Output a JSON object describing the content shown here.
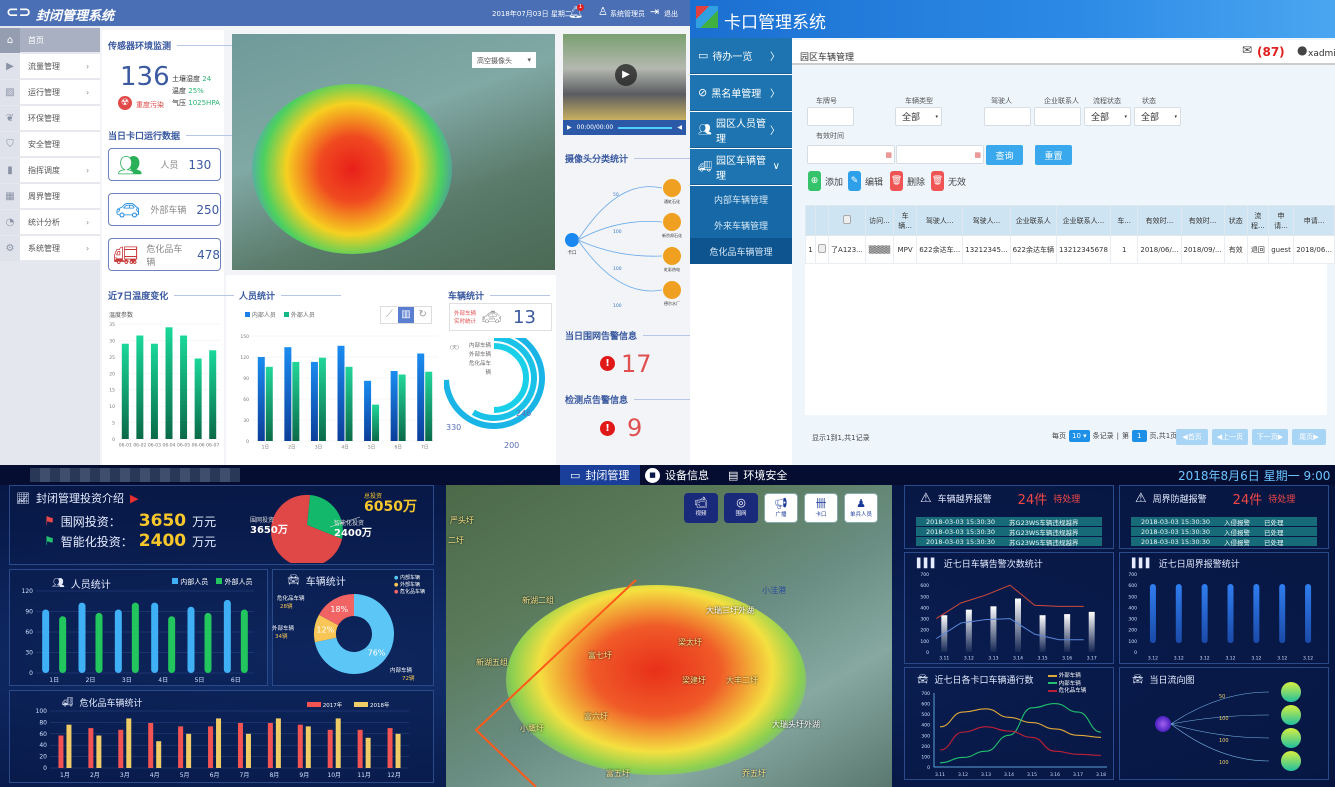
{
  "tl": {
    "app_title": "封闭管理系统",
    "date": "2018年07月03日 星期二",
    "bell_badge": "1",
    "user": "系统管理员",
    "logout": "退出",
    "sidebar": [
      {
        "label": "首页",
        "icon": "home-icon",
        "chevron": false
      },
      {
        "label": "流量管理",
        "icon": "video-icon",
        "chevron": true
      },
      {
        "label": "运行管理",
        "icon": "monitor-chart-icon",
        "chevron": true
      },
      {
        "label": "环保管理",
        "icon": "leaf-icon",
        "chevron": false
      },
      {
        "label": "安全管理",
        "icon": "shield-icon",
        "chevron": false
      },
      {
        "label": "指挥调度",
        "icon": "walkie-talkie-icon",
        "chevron": true
      },
      {
        "label": "周界管理",
        "icon": "fence-icon",
        "chevron": false
      },
      {
        "label": "统计分析",
        "icon": "pie-icon",
        "chevron": true
      },
      {
        "label": "系统管理",
        "icon": "gear-icon",
        "chevron": true
      }
    ],
    "sensor": {
      "title": "传感器环境监测",
      "value": "136",
      "status": "重度污染",
      "soil_label": "土壤湿度",
      "soil": "24",
      "temp_label": "温度",
      "temp": "25%",
      "pressure_label": "气压",
      "pressure": "1025HPA"
    },
    "gate": {
      "title": "当日卡口运行数据",
      "items": [
        {
          "label": "人员",
          "value": "130"
        },
        {
          "label": "外部车辆",
          "value": "250"
        },
        {
          "label": "危化品车辆",
          "value": "478"
        }
      ]
    },
    "map_select": "高空摄像头",
    "video_time": "00:00/00:00",
    "camera": {
      "title": "摄像头分类统计",
      "source": "卡口",
      "targets": [
        {
          "name": "通虹石化",
          "value": "50"
        },
        {
          "name": "新京邦石化",
          "value": "100"
        },
        {
          "name": "虹彩热电",
          "value": "100"
        },
        {
          "name": "德尔水厂",
          "value": "100"
        }
      ]
    },
    "fence_alarm": {
      "title": "当日围网告警信息",
      "value": "17"
    },
    "point_alarm": {
      "title": "检测点告警信息",
      "value": "9"
    },
    "temp_chart_title": "近7日温度变化",
    "people_chart_title": "人员统计",
    "vehicle": {
      "title": "车辆统计",
      "sub1": "外部车辆",
      "sub2": "实时统计",
      "count": "13",
      "unit": "(天)"
    }
  },
  "tr": {
    "app_title": "卡口管理系统",
    "sidebar": [
      {
        "label": "待办一览",
        "chev": "〉"
      },
      {
        "label": "黑名单管理",
        "chev": "〉"
      },
      {
        "label": "园区人员管理",
        "chev": "〉"
      },
      {
        "label": "园区车辆管理",
        "chev": "∨"
      }
    ],
    "submenu": [
      "内部车辆管理",
      "外来车辆管理",
      "危化品车辆管理"
    ],
    "page_title": "园区车辆管理",
    "mail_count": "(87)",
    "user": "xadmin",
    "filters": {
      "plate": "车牌号",
      "type": "车辆类型",
      "type_val": "全部",
      "driver": "驾驶人",
      "contact": "企业联系人",
      "flow": "流程状态",
      "flow_val": "全部",
      "state": "状态",
      "state_val": "全部",
      "valid": "有效时间"
    },
    "query": "查询",
    "reset": "重置",
    "actions": {
      "add": "添加",
      "edit": "编辑",
      "delete": "删除",
      "invalid": "无效"
    },
    "table": {
      "headers": [
        "",
        "车牌...",
        "访问...",
        "车辆...",
        "驾驶人...",
        "驾驶人...",
        "企业联系人",
        "企业联系人...",
        "车...",
        "有效时...",
        "有效时...",
        "状态",
        "流程...",
        "申请...",
        "申请..."
      ],
      "rows": [
        [
          "1",
          "了A123...",
          "▒▒▒▒",
          "MPV",
          "622余达车...",
          "13212345...",
          "622余达车辆",
          "13212345678",
          "1",
          "2018/06/...",
          "2018/09/...",
          "有效",
          "退回",
          "guest",
          "2018/06..."
        ]
      ]
    },
    "footer": {
      "summary": "显示1到1,共1记录",
      "per_page": "每页",
      "per_val": "10",
      "records": "条记录",
      "page_pre": "第",
      "page": "1",
      "page_post": "页,共1页",
      "first": "首页",
      "prev": "上一页",
      "next": "下一页",
      "last": "尾页"
    }
  },
  "bt": {
    "tabs": [
      "封闭管理",
      "设备信息",
      "环境安全"
    ],
    "datetime": "2018年8月6日 星期一 9:00",
    "invest": {
      "title": "封闭管理投资介绍",
      "fence_label": "围网投资：",
      "fence": "3650",
      "smart_label": "智能化投资：",
      "smart": "2400",
      "unit": "万元",
      "pie_total_label": "总投资",
      "pie_total": "6050万",
      "pie_fence_label": "围网投资",
      "pie_fence": "3650万",
      "pie_smart_label": "智能化投资",
      "pie_smart": "2400万"
    },
    "people_title": "人员统计",
    "vehicle_title": "车辆统计",
    "hazmat_title": "危化品车辆统计",
    "map_buttons": [
      "视频",
      "围网",
      "广播",
      "卡口",
      "单兵人员"
    ],
    "map_labels": [
      "严头圩",
      "二圩",
      "新湖二组",
      "新湖五组",
      "富七圩",
      "梁太圩",
      "梁建圩",
      "大丰二圩",
      "富六圩",
      "小洼港",
      "大瑞三圩外湖",
      "大瑞头圩外湖",
      "小鹰圩",
      "富五圩",
      "乔五圩"
    ],
    "alarm1": {
      "title": "车辆越界报警",
      "count": "24件",
      "status": "待处理",
      "rows": [
        [
          "2018-03-03 15:30:30",
          "苏G23WS车辆违规越界"
        ],
        [
          "2018-03-03 15:30:30",
          "苏G23WS车辆违规越界"
        ],
        [
          "2018-03-03 15:30:30",
          "苏G23WS车辆违规越界"
        ]
      ]
    },
    "alarm2": {
      "title": "周界防越报警",
      "count": "24件",
      "status": "待处理",
      "rows": [
        [
          "2018-03-03 15:30:30",
          "入侵报警",
          "已处理"
        ],
        [
          "2018-03-03 15:30:30",
          "入侵报警",
          "已处理"
        ],
        [
          "2018-03-03 15:30:30",
          "入侵报警",
          "已处理"
        ]
      ]
    },
    "c_alarm_title": "近七日车辆告警次数统计",
    "c_perim_title": "近七日周界报警统计",
    "c_gate_title": "近七日各卡口车辆通行数",
    "flow_title": "当日流向图",
    "flow_values": [
      "50",
      "100",
      "100",
      "100"
    ]
  },
  "chart_data": [
    {
      "id": "temp",
      "type": "bar",
      "title": "近7日温度变化",
      "ylabel": "温度参数",
      "categories": [
        "06-01",
        "06-02",
        "06-03",
        "06-04",
        "06-05",
        "06-06",
        "06-07"
      ],
      "series": [
        {
          "name": "温度",
          "values": [
            29,
            31.5,
            29,
            34,
            31.5,
            24.5,
            27
          ],
          "color": "#1fc98a"
        }
      ],
      "ylim": [
        0,
        35
      ],
      "ticks": [
        0,
        5,
        10,
        15,
        20,
        25,
        30,
        35
      ]
    },
    {
      "id": "people",
      "type": "bar",
      "title": "人员统计",
      "categories": [
        "1日",
        "2日",
        "3日",
        "4日",
        "5日",
        "6日",
        "7日"
      ],
      "series": [
        {
          "name": "内部人员",
          "values": [
            120,
            134,
            113,
            136,
            86,
            100,
            125
          ],
          "color": "#1a7ee8"
        },
        {
          "name": "外部人员",
          "values": [
            106,
            113,
            119,
            106,
            52,
            95,
            99
          ],
          "color": "#16b886"
        }
      ],
      "ylim": [
        0,
        150
      ],
      "ticks": [
        0,
        30,
        60,
        90,
        120,
        150
      ]
    },
    {
      "id": "ring",
      "type": "pie",
      "title": "车辆统计",
      "categories": [
        "内部车辆",
        "外部车辆",
        "危化品车辆"
      ],
      "values": [
        330,
        246,
        200
      ]
    },
    {
      "id": "bpeople",
      "type": "bar",
      "title": "人员统计",
      "categories": [
        "1日",
        "2日",
        "3日",
        "4日",
        "5日",
        "6日"
      ],
      "series": [
        {
          "name": "内部人员",
          "values": [
            93,
            103,
            93,
            103,
            97,
            107
          ],
          "color": "#3fb0f5"
        },
        {
          "name": "外部人员",
          "values": [
            83,
            88,
            103,
            83,
            88,
            93
          ],
          "color": "#22c55e"
        }
      ],
      "ylim": [
        0,
        120
      ],
      "ticks": [
        0,
        30,
        60,
        90,
        120
      ]
    },
    {
      "id": "donut",
      "type": "pie",
      "title": "车辆统计",
      "categories": [
        "内部车辆",
        "外部车辆",
        "危化品车辆"
      ],
      "values": [
        76,
        12,
        18
      ],
      "labels": [
        "76%",
        "12%",
        "18%"
      ],
      "counts": [
        "72辆",
        "34辆",
        "28辆"
      ],
      "colors": [
        "#5cc6f7",
        "#f7c656",
        "#f26464"
      ]
    },
    {
      "id": "hazmat",
      "type": "bar",
      "title": "危化品车辆统计",
      "categories": [
        "1月",
        "2月",
        "3月",
        "4月",
        "5月",
        "6月",
        "7月",
        "8月",
        "9月",
        "10月",
        "11月",
        "12月"
      ],
      "series": [
        {
          "name": "2017年",
          "values": [
            57,
            70,
            67,
            79,
            73,
            73,
            79,
            79,
            76,
            67,
            67,
            70
          ],
          "color": "#f25454"
        },
        {
          "name": "2018年",
          "values": [
            76,
            57,
            87,
            47,
            60,
            87,
            60,
            87,
            73,
            87,
            53,
            60
          ],
          "color": "#f0cc66"
        }
      ],
      "ylim": [
        0,
        100
      ],
      "ticks": [
        0,
        20,
        40,
        60,
        80,
        100
      ]
    },
    {
      "id": "valarm",
      "type": "bar",
      "title": "近七日车辆告警次数统计",
      "categories": [
        "3.11",
        "3.12",
        "3.13",
        "3.14",
        "3.15",
        "3.16",
        "3.17"
      ],
      "series": [
        {
          "name": "告警",
          "values": [
            330,
            380,
            410,
            480,
            330,
            340,
            360
          ],
          "color": "#ffffff"
        }
      ],
      "lines": [
        {
          "values": [
            300,
            440,
            510,
            600,
            420,
            410,
            410
          ],
          "color": "#d04a3a"
        },
        {
          "values": [
            120,
            260,
            290,
            300,
            160,
            110,
            110
          ],
          "color": "#5a86d8"
        }
      ],
      "ylim": [
        0,
        700
      ],
      "ticks": [
        0,
        100,
        200,
        300,
        400,
        500,
        600,
        700
      ]
    },
    {
      "id": "perim",
      "type": "bar",
      "title": "近七日周界报警统计",
      "categories": [
        "3.12",
        "3.12",
        "3.12",
        "3.12",
        "3.12",
        "3.12",
        "3.12"
      ],
      "series": [
        {
          "name": "报警",
          "values": [
            610,
            610,
            610,
            610,
            610,
            610,
            610
          ],
          "color": "#2f7ef0"
        }
      ],
      "ylim": [
        0,
        700
      ],
      "ticks": [
        0,
        100,
        200,
        300,
        400,
        500,
        600,
        700
      ]
    },
    {
      "id": "gate",
      "type": "line",
      "title": "近七日各卡口车辆通行数",
      "categories": [
        "3.11",
        "3.12",
        "3.13",
        "3.14",
        "3.15",
        "3.16",
        "3.17",
        "3.18"
      ],
      "series": [
        {
          "name": "外部车辆",
          "values": [
            380,
            520,
            550,
            470,
            420,
            360,
            300,
            280
          ],
          "color": "#e0a83a"
        },
        {
          "name": "内部车辆",
          "values": [
            40,
            90,
            150,
            300,
            560,
            600,
            520,
            330
          ],
          "color": "#22c070"
        },
        {
          "name": "危化品车辆",
          "values": [
            160,
            330,
            380,
            340,
            280,
            150,
            120,
            110
          ],
          "color": "#c02036"
        }
      ],
      "ylim": [
        0,
        700
      ],
      "ticks": [
        0,
        100,
        200,
        300,
        400,
        500,
        600,
        700
      ]
    }
  ]
}
